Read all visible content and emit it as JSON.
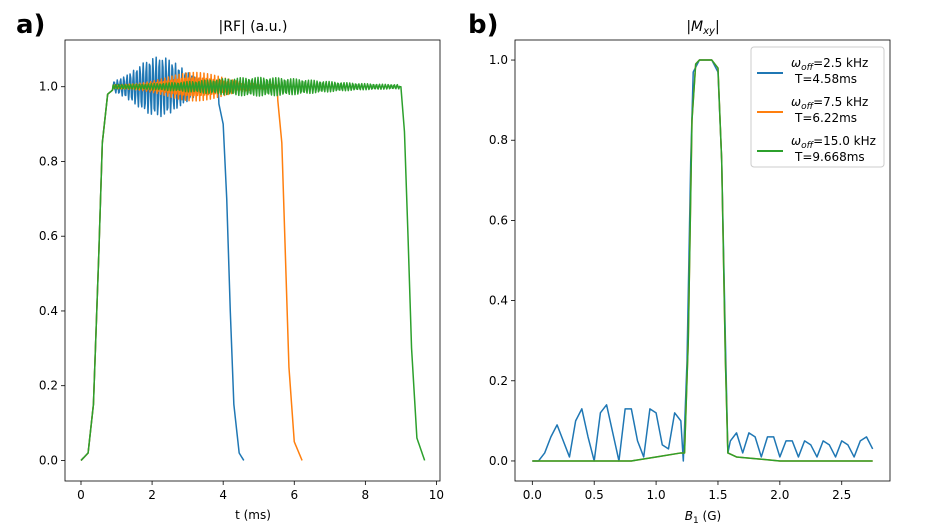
{
  "chart_data": [
    {
      "panel_label": "a)",
      "type": "line",
      "title": "|RF| (a.u.)",
      "xlabel": "t (ms)",
      "ylabel": "",
      "xlim": [
        -0.45,
        10.1
      ],
      "ylim": [
        -0.055,
        1.125
      ],
      "xticks": [
        0,
        2,
        4,
        6,
        8,
        10
      ],
      "yticks": [
        0.0,
        0.2,
        0.4,
        0.6,
        0.8,
        1.0
      ],
      "xtick_labels": [
        "0",
        "2",
        "4",
        "6",
        "8",
        "10"
      ],
      "ytick_labels": [
        "0.0",
        "0.2",
        "0.4",
        "0.6",
        "0.8",
        "1.0"
      ],
      "grid": false,
      "legend": false,
      "series": [
        {
          "color": "#1f77b4",
          "T": 4.58,
          "points": [
            [
              0.0,
              0.0
            ],
            [
              0.2,
              0.02
            ],
            [
              0.35,
              0.15
            ],
            [
              0.5,
              0.55
            ],
            [
              0.6,
              0.85
            ],
            [
              0.75,
              0.98
            ],
            [
              1.0,
              1.0
            ],
            [
              1.5,
              1.0
            ],
            [
              1.75,
              1.03
            ],
            [
              2.0,
              1.06
            ],
            [
              2.25,
              1.05
            ],
            [
              2.5,
              1.02
            ],
            [
              3.0,
              0.98
            ],
            [
              3.5,
              1.0
            ],
            [
              3.8,
              0.99
            ],
            [
              4.0,
              0.9
            ],
            [
              4.1,
              0.7
            ],
            [
              4.2,
              0.4
            ],
            [
              4.3,
              0.15
            ],
            [
              4.45,
              0.02
            ],
            [
              4.58,
              0.0
            ]
          ]
        },
        {
          "color": "#ff7f0e",
          "T": 6.22,
          "points": [
            [
              0.0,
              0.0
            ],
            [
              0.2,
              0.02
            ],
            [
              0.35,
              0.15
            ],
            [
              0.5,
              0.55
            ],
            [
              0.6,
              0.85
            ],
            [
              0.75,
              0.98
            ],
            [
              1.0,
              1.0
            ],
            [
              2.5,
              1.0
            ],
            [
              3.0,
              1.03
            ],
            [
              3.5,
              1.02
            ],
            [
              4.0,
              1.0
            ],
            [
              5.0,
              1.0
            ],
            [
              5.5,
              1.0
            ],
            [
              5.65,
              0.85
            ],
            [
              5.75,
              0.55
            ],
            [
              5.85,
              0.25
            ],
            [
              6.0,
              0.05
            ],
            [
              6.22,
              0.0
            ]
          ]
        },
        {
          "color": "#2ca02c",
          "T": 9.668,
          "points": [
            [
              0.0,
              0.0
            ],
            [
              0.2,
              0.02
            ],
            [
              0.35,
              0.15
            ],
            [
              0.5,
              0.55
            ],
            [
              0.6,
              0.85
            ],
            [
              0.75,
              0.98
            ],
            [
              1.0,
              1.0
            ],
            [
              3.5,
              1.0
            ],
            [
              4.8,
              1.02
            ],
            [
              6.0,
              1.01
            ],
            [
              7.5,
              1.0
            ],
            [
              9.0,
              1.0
            ],
            [
              9.1,
              0.88
            ],
            [
              9.2,
              0.6
            ],
            [
              9.3,
              0.3
            ],
            [
              9.45,
              0.06
            ],
            [
              9.668,
              0.0
            ]
          ]
        }
      ]
    },
    {
      "panel_label": "b)",
      "type": "line",
      "title": "|Mxy|",
      "xlabel": "B1 (G)",
      "ylabel": "",
      "xlim": [
        -0.14,
        2.89
      ],
      "ylim": [
        -0.05,
        1.05
      ],
      "xticks": [
        0.0,
        0.5,
        1.0,
        1.5,
        2.0,
        2.5
      ],
      "yticks": [
        0.0,
        0.2,
        0.4,
        0.6,
        0.8,
        1.0
      ],
      "xtick_labels": [
        "0.0",
        "0.5",
        "1.0",
        "1.5",
        "2.0",
        "2.5"
      ],
      "ytick_labels": [
        "0.0",
        "0.2",
        "0.4",
        "0.6",
        "0.8",
        "1.0"
      ],
      "grid": false,
      "legend": true,
      "legend_placement": "top-right",
      "legend_entries": [
        {
          "prefix": "ω",
          "sub": "off",
          "suffix": "=2.5 kHz",
          "line2": "T=4.58ms",
          "color": "#1f77b4"
        },
        {
          "prefix": "ω",
          "sub": "off",
          "suffix": "=7.5 kHz",
          "line2": "T=6.22ms",
          "color": "#ff7f0e"
        },
        {
          "prefix": "ω",
          "sub": "off",
          "suffix": "=15.0 kHz",
          "line2": "T=9.668ms",
          "color": "#2ca02c"
        }
      ],
      "series": [
        {
          "color": "#1f77b4",
          "points": [
            [
              0.0,
              0.0
            ],
            [
              0.05,
              0.0
            ],
            [
              0.1,
              0.02
            ],
            [
              0.15,
              0.06
            ],
            [
              0.2,
              0.09
            ],
            [
              0.25,
              0.05
            ],
            [
              0.3,
              0.01
            ],
            [
              0.35,
              0.1
            ],
            [
              0.4,
              0.13
            ],
            [
              0.45,
              0.06
            ],
            [
              0.5,
              0.0
            ],
            [
              0.55,
              0.12
            ],
            [
              0.6,
              0.14
            ],
            [
              0.65,
              0.07
            ],
            [
              0.7,
              0.0
            ],
            [
              0.75,
              0.13
            ],
            [
              0.8,
              0.13
            ],
            [
              0.85,
              0.05
            ],
            [
              0.9,
              0.01
            ],
            [
              0.95,
              0.13
            ],
            [
              1.0,
              0.12
            ],
            [
              1.05,
              0.04
            ],
            [
              1.1,
              0.03
            ],
            [
              1.15,
              0.12
            ],
            [
              1.2,
              0.1
            ],
            [
              1.22,
              0.0
            ],
            [
              1.25,
              0.25
            ],
            [
              1.28,
              0.75
            ],
            [
              1.3,
              0.97
            ],
            [
              1.35,
              1.0
            ],
            [
              1.45,
              1.0
            ],
            [
              1.5,
              0.97
            ],
            [
              1.53,
              0.75
            ],
            [
              1.56,
              0.3
            ],
            [
              1.58,
              0.02
            ],
            [
              1.6,
              0.05
            ],
            [
              1.65,
              0.07
            ],
            [
              1.7,
              0.02
            ],
            [
              1.75,
              0.07
            ],
            [
              1.8,
              0.06
            ],
            [
              1.85,
              0.01
            ],
            [
              1.9,
              0.06
            ],
            [
              1.95,
              0.06
            ],
            [
              2.0,
              0.01
            ],
            [
              2.05,
              0.05
            ],
            [
              2.1,
              0.05
            ],
            [
              2.15,
              0.01
            ],
            [
              2.2,
              0.05
            ],
            [
              2.25,
              0.04
            ],
            [
              2.3,
              0.01
            ],
            [
              2.35,
              0.05
            ],
            [
              2.4,
              0.04
            ],
            [
              2.45,
              0.01
            ],
            [
              2.5,
              0.05
            ],
            [
              2.55,
              0.04
            ],
            [
              2.6,
              0.01
            ],
            [
              2.65,
              0.05
            ],
            [
              2.7,
              0.06
            ],
            [
              2.75,
              0.03
            ]
          ]
        },
        {
          "color": "#ff7f0e",
          "points": [
            [
              0.0,
              0.0
            ],
            [
              0.8,
              0.0
            ],
            [
              1.0,
              0.01
            ],
            [
              1.2,
              0.02
            ],
            [
              1.23,
              0.02
            ],
            [
              1.26,
              0.3
            ],
            [
              1.29,
              0.85
            ],
            [
              1.32,
              0.99
            ],
            [
              1.35,
              1.0
            ],
            [
              1.45,
              1.0
            ],
            [
              1.5,
              0.98
            ],
            [
              1.53,
              0.75
            ],
            [
              1.56,
              0.25
            ],
            [
              1.58,
              0.02
            ],
            [
              1.65,
              0.01
            ],
            [
              2.0,
              0.0
            ],
            [
              2.75,
              0.0
            ]
          ]
        },
        {
          "color": "#2ca02c",
          "points": [
            [
              0.0,
              0.0
            ],
            [
              0.8,
              0.0
            ],
            [
              1.0,
              0.01
            ],
            [
              1.2,
              0.02
            ],
            [
              1.23,
              0.02
            ],
            [
              1.26,
              0.3
            ],
            [
              1.29,
              0.85
            ],
            [
              1.32,
              0.99
            ],
            [
              1.35,
              1.0
            ],
            [
              1.45,
              1.0
            ],
            [
              1.5,
              0.98
            ],
            [
              1.53,
              0.75
            ],
            [
              1.56,
              0.25
            ],
            [
              1.58,
              0.02
            ],
            [
              1.65,
              0.01
            ],
            [
              2.0,
              0.0
            ],
            [
              2.75,
              0.0
            ]
          ]
        }
      ]
    }
  ]
}
